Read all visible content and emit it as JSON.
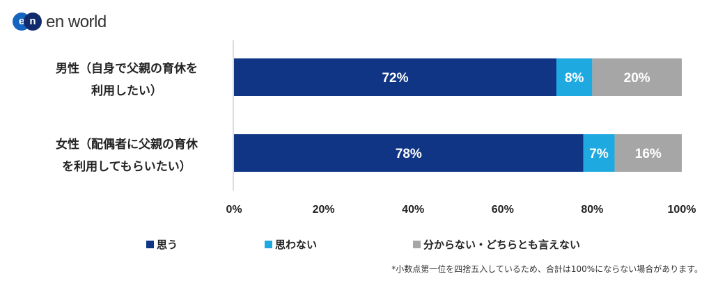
{
  "brand": {
    "name": "en world",
    "mark_e": "e",
    "mark_n": "n"
  },
  "chart_data": {
    "type": "bar",
    "orientation": "horizontal",
    "stacked": true,
    "categories": [
      {
        "line1": "男性（自身で父親の育休を",
        "line2": "利用したい）"
      },
      {
        "line1": "女性（配偶者に父親の育休",
        "line2": "を利用してもらいたい）"
      }
    ],
    "series": [
      {
        "name": "思う",
        "color": "#0f3584",
        "values": [
          72,
          78
        ],
        "labels": [
          "72%",
          "78%"
        ]
      },
      {
        "name": "思わない",
        "color": "#1ea9e1",
        "values": [
          8,
          7
        ],
        "labels": [
          "8%",
          "7%"
        ]
      },
      {
        "name": "分からない・どちらとも言えない",
        "color": "#a6a6a6",
        "values": [
          20,
          16
        ],
        "labels": [
          "20%",
          "16%"
        ]
      }
    ],
    "xlim": [
      0,
      100
    ],
    "ticks": [
      "0%",
      "20%",
      "40%",
      "60%",
      "80%",
      "100%"
    ],
    "legend_position": "bottom",
    "grid": false
  },
  "footnote": "*小数点第一位を四捨五入しているため、合計は100%にならない場合があります。"
}
